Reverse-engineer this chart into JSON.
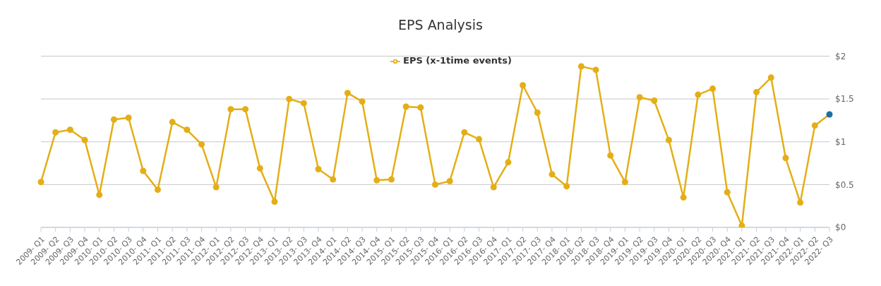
{
  "chart_data": {
    "type": "line",
    "title": "EPS Analysis",
    "categories": [
      "2009- Q1",
      "2009- Q2",
      "2009- Q3",
      "2009- Q4",
      "2010- Q1",
      "2010- Q2",
      "2010- Q3",
      "2010- Q4",
      "2011- Q1",
      "2011- Q2",
      "2011- Q3",
      "2011- Q4",
      "2012- Q1",
      "2012- Q2",
      "2012- Q3",
      "2012- Q4",
      "2013- Q1",
      "2013- Q2",
      "2013- Q3",
      "2013- Q4",
      "2014- Q1",
      "2014- Q2",
      "2014- Q3",
      "2014- Q4",
      "2015- Q1",
      "2015- Q2",
      "2015- Q3",
      "2015- Q4",
      "2016- Q1",
      "2016- Q2",
      "2016- Q3",
      "2016- Q4",
      "2017- Q1",
      "2017- Q2",
      "2017- Q3",
      "2017- Q4",
      "2018- Q1",
      "2018- Q2",
      "2018- Q3",
      "2018- Q4",
      "2019- Q1",
      "2019- Q2",
      "2019- Q3",
      "2019- Q4",
      "2020- Q1",
      "2020- Q2",
      "2020- Q3",
      "2020- Q4",
      "2021- Q1",
      "2021- Q2",
      "2021- Q3",
      "2021- Q4",
      "2022- Q1",
      "2022- Q2",
      "2022- Q3"
    ],
    "series": [
      {
        "name": "EPS (x-1time events)",
        "color": "#e4ae16",
        "colors": [
          "#e4ae16",
          "#e4ae16",
          "#e4ae16",
          "#e4ae16",
          "#e4ae16",
          "#e4ae16",
          "#e4ae16",
          "#e4ae16",
          "#e4ae16",
          "#e4ae16",
          "#e4ae16",
          "#e4ae16",
          "#e4ae16",
          "#e4ae16",
          "#e4ae16",
          "#e4ae16",
          "#e4ae16",
          "#e4ae16",
          "#e4ae16",
          "#e4ae16",
          "#e4ae16",
          "#e4ae16",
          "#e4ae16",
          "#e4ae16",
          "#e4ae16",
          "#e4ae16",
          "#e4ae16",
          "#e4ae16",
          "#e4ae16",
          "#e4ae16",
          "#e4ae16",
          "#e4ae16",
          "#e4ae16",
          "#e4ae16",
          "#e4ae16",
          "#e4ae16",
          "#e4ae16",
          "#e4ae16",
          "#e4ae16",
          "#e4ae16",
          "#e4ae16",
          "#e4ae16",
          "#e4ae16",
          "#e4ae16",
          "#e4ae16",
          "#e4ae16",
          "#e4ae16",
          "#e4ae16",
          "#e4ae16",
          "#e4ae16",
          "#e4ae16",
          "#e4ae16",
          "#e4ae16",
          "#e4ae16",
          "#1a6fa8"
        ],
        "values": [
          0.53,
          1.11,
          1.14,
          1.02,
          0.38,
          1.26,
          1.28,
          0.66,
          0.44,
          1.23,
          1.14,
          0.97,
          0.47,
          1.38,
          1.38,
          0.69,
          0.3,
          1.5,
          1.45,
          0.68,
          0.56,
          1.57,
          1.47,
          0.55,
          0.56,
          1.41,
          1.4,
          0.5,
          0.54,
          1.11,
          1.03,
          0.47,
          0.76,
          1.66,
          1.34,
          0.62,
          0.48,
          1.88,
          1.84,
          0.84,
          0.53,
          1.52,
          1.48,
          1.02,
          0.35,
          1.55,
          1.62,
          0.41,
          0.02,
          1.58,
          1.75,
          0.81,
          0.29,
          1.19,
          1.32
        ]
      }
    ],
    "ylim": [
      0,
      2
    ],
    "yticks": [
      {
        "value": 0,
        "label": "$0"
      },
      {
        "value": 0.5,
        "label": "$0.5"
      },
      {
        "value": 1,
        "label": "$1"
      },
      {
        "value": 1.5,
        "label": "$1.5"
      },
      {
        "value": 2,
        "label": "$2"
      }
    ],
    "grid": "y",
    "legend": "top",
    "marker": "circle",
    "line_style": "solid"
  }
}
